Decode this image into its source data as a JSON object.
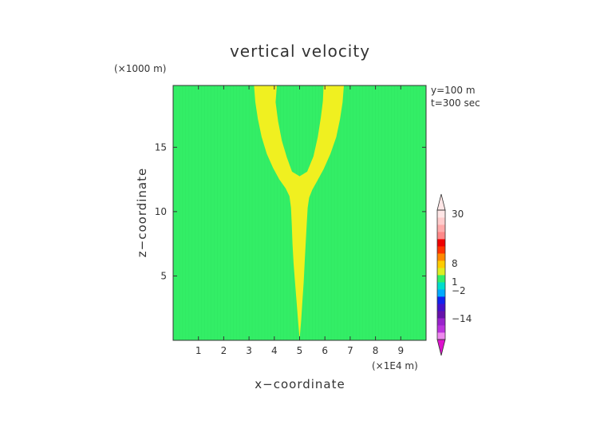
{
  "chart_data": {
    "type": "heatmap",
    "title": "vertical velocity",
    "xlabel": "x−coordinate",
    "ylabel": "z−coordinate",
    "x_unit": "(×1E4 m)",
    "y_unit": "(×1000 m)",
    "annotations": [
      "y=100  m",
      "t=300 sec"
    ],
    "xlim": [
      0,
      10
    ],
    "ylim": [
      0,
      19.8
    ],
    "x_ticks": [
      1,
      2,
      3,
      4,
      5,
      6,
      7,
      8,
      9
    ],
    "y_ticks": [
      5,
      10,
      15
    ],
    "background_color": "#33ee66",
    "plume_color": "#f0f020",
    "plume": {
      "left_edge": [
        [
          5.0,
          0.1
        ],
        [
          4.94,
          1.5
        ],
        [
          4.88,
          3.0
        ],
        [
          4.82,
          4.5
        ],
        [
          4.76,
          6.0
        ],
        [
          4.72,
          7.5
        ],
        [
          4.69,
          9.0
        ],
        [
          4.66,
          10.3
        ],
        [
          4.6,
          11.2
        ],
        [
          4.45,
          11.8
        ],
        [
          4.2,
          12.5
        ],
        [
          3.95,
          13.4
        ],
        [
          3.7,
          14.5
        ],
        [
          3.5,
          15.8
        ],
        [
          3.35,
          17.2
        ],
        [
          3.25,
          18.5
        ],
        [
          3.2,
          19.8
        ]
      ],
      "right_edge": [
        [
          6.75,
          19.8
        ],
        [
          6.7,
          18.5
        ],
        [
          6.6,
          17.2
        ],
        [
          6.45,
          15.8
        ],
        [
          6.22,
          14.5
        ],
        [
          5.95,
          13.3
        ],
        [
          5.7,
          12.4
        ],
        [
          5.5,
          11.7
        ],
        [
          5.38,
          11.1
        ],
        [
          5.32,
          10.3
        ],
        [
          5.28,
          9.0
        ],
        [
          5.24,
          7.5
        ],
        [
          5.2,
          6.0
        ],
        [
          5.16,
          4.5
        ],
        [
          5.11,
          3.0
        ],
        [
          5.06,
          1.5
        ],
        [
          5.0,
          0.1
        ]
      ],
      "notch": [
        [
          4.1,
          19.8
        ],
        [
          4.05,
          18.5
        ],
        [
          4.15,
          17.0
        ],
        [
          4.3,
          15.5
        ],
        [
          4.5,
          14.2
        ],
        [
          4.7,
          13.1
        ],
        [
          5.0,
          12.75
        ],
        [
          5.3,
          13.1
        ],
        [
          5.55,
          14.3
        ],
        [
          5.72,
          15.8
        ],
        [
          5.84,
          17.3
        ],
        [
          5.92,
          18.6
        ],
        [
          5.95,
          19.8
        ]
      ]
    },
    "colorbar": {
      "labels": [
        "30",
        "8",
        "1",
        "−2",
        "−14"
      ],
      "colors": [
        "#ee88ee",
        "#bb33dd",
        "#9922cc",
        "#6611aa",
        "#4411cc",
        "#1122ee",
        "#00aaff",
        "#00ddcc",
        "#33ee66",
        "#ddee22",
        "#ffcc00",
        "#ff8800",
        "#ff3300",
        "#ee0000",
        "#ff8888",
        "#ffaaaa",
        "#ffcccc",
        "#ffe6e6"
      ]
    }
  }
}
